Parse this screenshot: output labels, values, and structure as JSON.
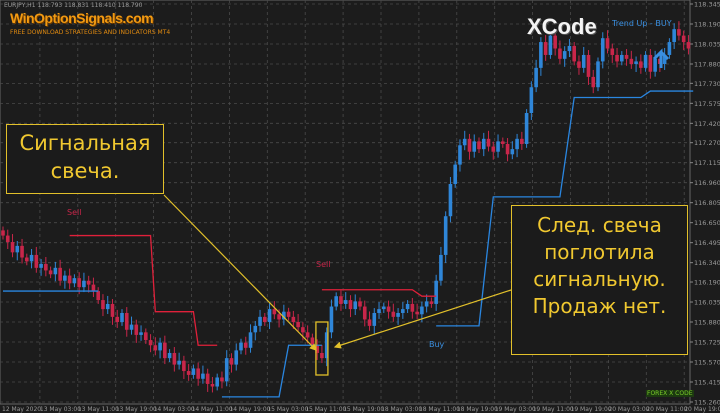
{
  "header": {
    "symbol_info": "EURJPY,H1  118.793 118.831 118.410 118.790"
  },
  "logo": {
    "title": "WinOptionSignals.com",
    "subtitle": "FREE DOWNLOAD STRATEGIES AND INDICATORS MT4"
  },
  "indicator": {
    "name": "XCode",
    "signal_text": "Trend Up - BUY",
    "brand": "FOREX X CODE"
  },
  "signals": [
    {
      "label": "Sell",
      "color": "#c8264a"
    },
    {
      "label": "Sell",
      "color": "#c8264a"
    },
    {
      "label": "Buy",
      "color": "#3a8fe0"
    }
  ],
  "annotations": [
    {
      "lines": [
        "Сигнальная",
        "свеча."
      ]
    },
    {
      "lines": [
        "След. свеча",
        "поглотила",
        "сигнальную.",
        "Продаж нет."
      ]
    }
  ],
  "colors": {
    "bull": "#2f86d8",
    "bear": "#c8264a",
    "grid": "#4a4a4a",
    "annotation": "#e2c02a",
    "trend_line": "#2a86e0",
    "sell_line": "#e0203a"
  },
  "chart_data": {
    "type": "candlestick",
    "ylim": [
      115.26,
      118.345
    ],
    "grid": true,
    "y_ticks": [
      "118.345",
      "118.190",
      "118.035",
      "117.880",
      "117.730",
      "117.575",
      "117.420",
      "117.270",
      "117.115",
      "116.960",
      "116.805",
      "116.650",
      "116.495",
      "116.340",
      "116.190",
      "116.035",
      "115.880",
      "115.725",
      "115.570",
      "115.415",
      "115.260"
    ],
    "x_ticks": [
      "12 May 2020",
      "13 May 03:00",
      "13 May 11:00",
      "13 May 19:00",
      "14 May 03:00",
      "14 May 11:00",
      "14 May 19:00",
      "15 May 03:00",
      "15 May 11:00",
      "15 May 19:00",
      "18 May 03:00",
      "18 May 11:00",
      "18 May 19:00",
      "19 May 03:00",
      "19 May 11:00",
      "19 May 19:00",
      "20 May 03:00",
      "20 May 11:00",
      "20 May 19:00"
    ],
    "closes": [
      116.55,
      116.5,
      116.42,
      116.47,
      116.38,
      116.35,
      116.4,
      116.3,
      116.33,
      116.28,
      116.25,
      116.3,
      116.2,
      116.24,
      116.18,
      116.22,
      116.15,
      116.2,
      116.17,
      116.12,
      116.05,
      115.98,
      116.02,
      115.92,
      115.88,
      115.95,
      115.82,
      115.86,
      115.78,
      115.8,
      115.74,
      115.7,
      115.66,
      115.72,
      115.6,
      115.64,
      115.55,
      115.58,
      115.5,
      115.47,
      115.52,
      115.44,
      115.48,
      115.4,
      115.38,
      115.45,
      115.42,
      115.6,
      115.55,
      115.66,
      115.72,
      115.68,
      115.8,
      115.85,
      115.92,
      115.88,
      115.98,
      115.94,
      115.9,
      115.96,
      115.92,
      115.88,
      115.84,
      115.8,
      115.76,
      115.7,
      115.64,
      115.6,
      115.8,
      116.0,
      116.08,
      116.02,
      116.05,
      115.98,
      116.04,
      116.0,
      115.9,
      115.85,
      115.95,
      115.98,
      116.0,
      115.96,
      115.92,
      115.95,
      115.98,
      116.02,
      115.96,
      115.94,
      116.0,
      116.04,
      116.02,
      116.2,
      116.4,
      116.7,
      116.95,
      117.1,
      117.25,
      117.3,
      117.2,
      117.28,
      117.22,
      117.3,
      117.24,
      117.2,
      117.28,
      117.26,
      117.18,
      117.22,
      117.3,
      117.26,
      117.5,
      117.7,
      117.85,
      118.05,
      117.95,
      118.1,
      118.0,
      117.92,
      117.98,
      118.02,
      117.9,
      117.85,
      117.95,
      117.78,
      117.7,
      117.9,
      118.08,
      118.0,
      117.95,
      117.9,
      117.95,
      117.92,
      117.88,
      117.9,
      117.85,
      117.95,
      117.82,
      117.92,
      117.88,
      117.95,
      118.05,
      118.15,
      118.1,
      118.05,
      118.0
    ],
    "sell_lines": [
      [
        [
          14,
          116.55
        ],
        [
          31,
          116.55
        ],
        [
          32,
          115.96
        ],
        [
          40,
          115.96
        ],
        [
          41,
          115.7
        ],
        [
          45,
          115.7
        ]
      ],
      [
        [
          67,
          116.13
        ],
        [
          86,
          116.13
        ],
        [
          88,
          116.08
        ],
        [
          91,
          116.08
        ]
      ]
    ],
    "trend_lines": [
      [
        [
          0,
          116.12
        ],
        [
          20,
          116.12
        ]
      ],
      [
        [
          46,
          115.3
        ],
        [
          58,
          115.3
        ],
        [
          60,
          115.7
        ],
        [
          67,
          115.7
        ]
      ],
      [
        [
          91,
          115.85
        ],
        [
          100,
          115.85
        ],
        [
          103,
          116.85
        ],
        [
          117,
          116.85
        ],
        [
          120,
          117.62
        ],
        [
          134,
          117.62
        ],
        [
          136,
          117.67
        ],
        [
          145,
          117.67
        ]
      ]
    ],
    "signal_candle_index": 67
  }
}
